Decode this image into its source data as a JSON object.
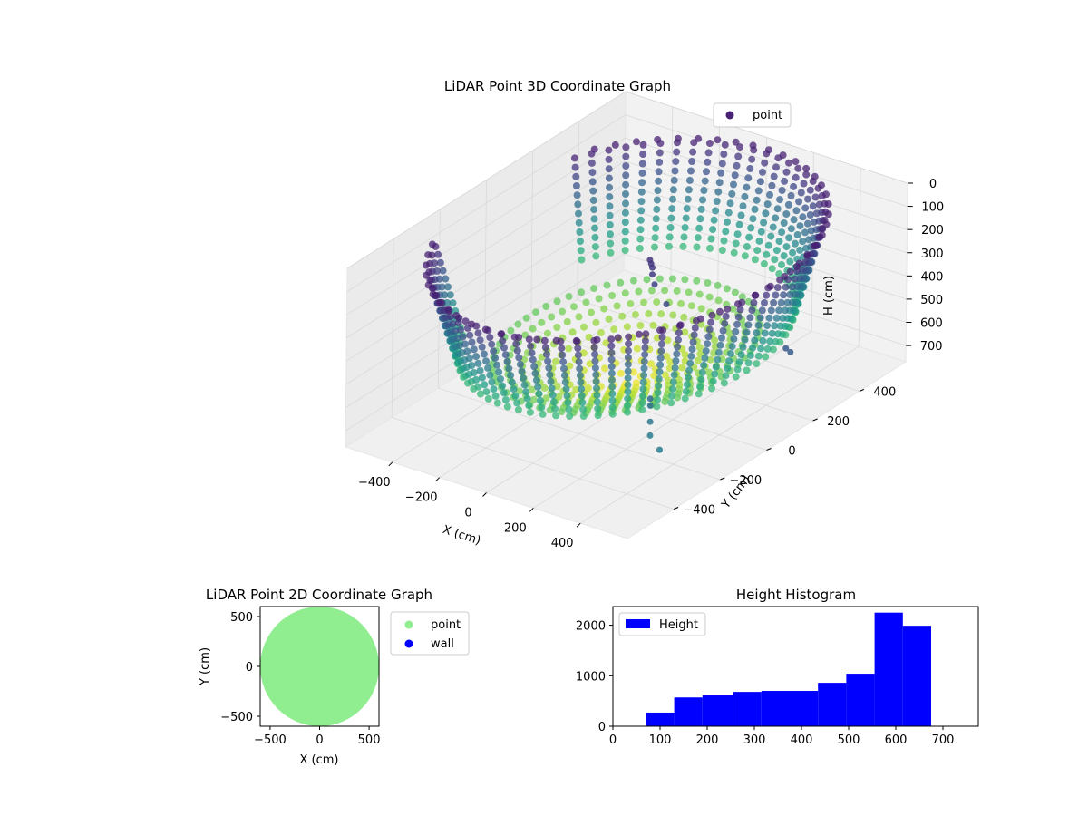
{
  "colors": {
    "viridis_dark": "#440154",
    "viridis_mid": "#21918c",
    "viridis_light": "#fde725",
    "scatter2d_point": "#90ee90",
    "scatter2d_wall": "#0000ff",
    "histogram_bar": "#0000ff",
    "pane": "#f2f2f2",
    "grid": "#d9d9d9"
  },
  "chart_data": [
    {
      "type": "scatter",
      "projection": "3d",
      "title": "LiDAR Point 3D Coordinate Graph",
      "xlabel": "X (cm)",
      "ylabel": "Y (cm)",
      "zlabel": "H (cm)",
      "xticks": [
        "−400",
        "−200",
        "0",
        "200",
        "400"
      ],
      "yticks": [
        "−400",
        "−200",
        "0",
        "200",
        "400"
      ],
      "zticks": [
        "0",
        "100",
        "200",
        "300",
        "400",
        "500",
        "600",
        "700"
      ],
      "xlim": [
        -600,
        600
      ],
      "ylim": [
        -600,
        600
      ],
      "zlim": [
        0,
        770
      ],
      "z_inverted": true,
      "colormap": "viridis",
      "legend": {
        "entries": [
          "point"
        ],
        "placement": "top-right"
      },
      "grid": true,
      "shape": {
        "description_of_cloud": "cylindrical wall of points of radius ~600 cm with bowl-shaped floor, heights 70–680 cm",
        "radius": 600,
        "rim_height": 70,
        "floor_height": 680,
        "open_sector_deg": [
          150,
          210
        ]
      },
      "outlier_points": [
        {
          "x": -20,
          "y": 120,
          "z": 230
        },
        {
          "x": -10,
          "y": 115,
          "z": 240
        },
        {
          "x": 0,
          "y": 110,
          "z": 250
        },
        {
          "x": 10,
          "y": 100,
          "z": 270
        },
        {
          "x": 30,
          "y": 90,
          "z": 300
        },
        {
          "x": 110,
          "y": 60,
          "z": 340
        },
        {
          "x": 300,
          "y": -200,
          "z": 520
        },
        {
          "x": 310,
          "y": -210,
          "z": 540
        },
        {
          "x": 320,
          "y": -220,
          "z": 600
        },
        {
          "x": 330,
          "y": -230,
          "z": 650
        },
        {
          "x": 420,
          "y": -280,
          "z": 650
        },
        {
          "x": 560,
          "y": 120,
          "z": 420
        },
        {
          "x": 570,
          "y": 130,
          "z": 440
        }
      ]
    },
    {
      "type": "scatter",
      "title": "LiDAR Point 2D Coordinate Graph",
      "xlabel": "X (cm)",
      "ylabel": "Y (cm)",
      "xticks": [
        "−500",
        "0",
        "500"
      ],
      "yticks": [
        "500",
        "0",
        "−500"
      ],
      "xlim": [
        -600,
        600
      ],
      "ylim": [
        -600,
        600
      ],
      "series": [
        {
          "name": "point",
          "color": "#90ee90",
          "region": "filled disc of radius ~600 cm clipped to axes"
        },
        {
          "name": "wall",
          "color": "#0000ff",
          "points": []
        }
      ],
      "legend": {
        "entries": [
          "point",
          "wall"
        ],
        "placement": "outside-right"
      }
    },
    {
      "type": "bar",
      "subtype": "histogram",
      "title": "Height Histogram",
      "xlabel": "",
      "ylabel": "",
      "bin_edges": [
        70,
        130,
        190,
        255,
        315,
        375,
        435,
        495,
        555,
        615,
        675
      ],
      "values": [
        270,
        570,
        610,
        680,
        700,
        700,
        860,
        1040,
        2250,
        1990
      ],
      "xlim": [
        0,
        775
      ],
      "ylim": [
        0,
        2370
      ],
      "xticks": [
        "0",
        "100",
        "200",
        "300",
        "400",
        "500",
        "600",
        "700"
      ],
      "yticks": [
        "0",
        "1000",
        "2000"
      ],
      "legend": {
        "entries": [
          "Height"
        ],
        "placement": "top-left"
      },
      "series": [
        {
          "name": "Height",
          "color": "#0000ff"
        }
      ]
    }
  ]
}
